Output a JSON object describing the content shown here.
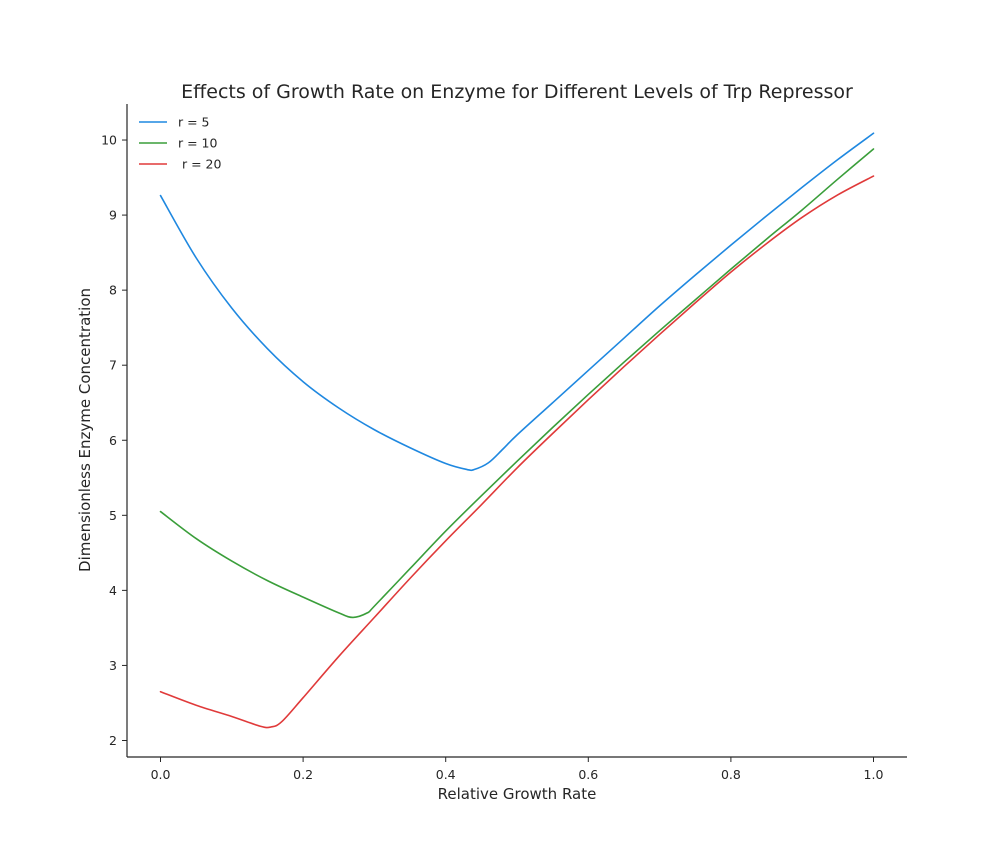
{
  "chart_data": {
    "type": "line",
    "title": "Effects of Growth Rate on Enzyme for Different Levels of Trp Repressor",
    "xlabel": "Relative Growth Rate",
    "ylabel": "Dimensionless Enzyme Concentration",
    "xlim": [
      -0.047,
      1.047
    ],
    "ylim": [
      1.78,
      10.48
    ],
    "xticks": [
      0.0,
      0.2,
      0.4,
      0.6,
      0.8,
      1.0
    ],
    "xtick_labels": [
      "0.0",
      "0.2",
      "0.4",
      "0.6",
      "0.8",
      "1.0"
    ],
    "yticks": [
      2,
      3,
      4,
      5,
      6,
      7,
      8,
      9,
      10
    ],
    "ytick_labels": [
      "2",
      "3",
      "4",
      "5",
      "6",
      "7",
      "8",
      "9",
      "10"
    ],
    "grid": false,
    "legend_position": "top-left",
    "series": [
      {
        "name": "r = 5",
        "color": "#1f88e0",
        "points": [
          [
            0.0,
            9.26
          ],
          [
            0.05,
            8.43
          ],
          [
            0.1,
            7.76
          ],
          [
            0.15,
            7.22
          ],
          [
            0.2,
            6.78
          ],
          [
            0.25,
            6.43
          ],
          [
            0.3,
            6.14
          ],
          [
            0.35,
            5.9
          ],
          [
            0.4,
            5.69
          ],
          [
            0.43,
            5.61
          ],
          [
            0.44,
            5.61
          ],
          [
            0.46,
            5.7
          ],
          [
            0.48,
            5.88
          ],
          [
            0.5,
            6.07
          ],
          [
            0.55,
            6.5
          ],
          [
            0.6,
            6.93
          ],
          [
            0.65,
            7.36
          ],
          [
            0.7,
            7.79
          ],
          [
            0.75,
            8.2
          ],
          [
            0.8,
            8.6
          ],
          [
            0.85,
            8.99
          ],
          [
            0.9,
            9.37
          ],
          [
            0.95,
            9.74
          ],
          [
            1.0,
            10.09
          ]
        ]
      },
      {
        "name": "r = 10",
        "color": "#3a9e3a",
        "points": [
          [
            0.0,
            5.05
          ],
          [
            0.05,
            4.69
          ],
          [
            0.1,
            4.39
          ],
          [
            0.15,
            4.13
          ],
          [
            0.2,
            3.91
          ],
          [
            0.25,
            3.7
          ],
          [
            0.27,
            3.64
          ],
          [
            0.29,
            3.7
          ],
          [
            0.3,
            3.79
          ],
          [
            0.35,
            4.29
          ],
          [
            0.4,
            4.79
          ],
          [
            0.45,
            5.26
          ],
          [
            0.5,
            5.72
          ],
          [
            0.55,
            6.17
          ],
          [
            0.6,
            6.61
          ],
          [
            0.65,
            7.04
          ],
          [
            0.7,
            7.46
          ],
          [
            0.75,
            7.87
          ],
          [
            0.8,
            8.28
          ],
          [
            0.85,
            8.68
          ],
          [
            0.9,
            9.07
          ],
          [
            0.95,
            9.48
          ],
          [
            1.0,
            9.88
          ]
        ]
      },
      {
        "name": " r = 20",
        "color": "#e03a3a",
        "points": [
          [
            0.0,
            2.65
          ],
          [
            0.05,
            2.47
          ],
          [
            0.1,
            2.32
          ],
          [
            0.14,
            2.19
          ],
          [
            0.155,
            2.18
          ],
          [
            0.17,
            2.25
          ],
          [
            0.2,
            2.57
          ],
          [
            0.25,
            3.12
          ],
          [
            0.3,
            3.64
          ],
          [
            0.35,
            4.16
          ],
          [
            0.4,
            4.66
          ],
          [
            0.45,
            5.14
          ],
          [
            0.5,
            5.63
          ],
          [
            0.55,
            6.09
          ],
          [
            0.6,
            6.54
          ],
          [
            0.65,
            6.98
          ],
          [
            0.7,
            7.41
          ],
          [
            0.75,
            7.83
          ],
          [
            0.8,
            8.24
          ],
          [
            0.85,
            8.62
          ],
          [
            0.9,
            8.97
          ],
          [
            0.95,
            9.27
          ],
          [
            1.0,
            9.52
          ]
        ]
      }
    ]
  }
}
